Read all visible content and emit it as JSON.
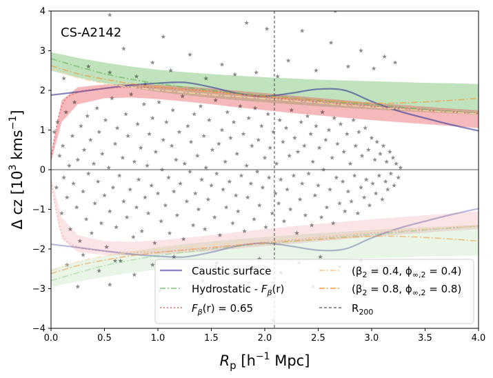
{
  "chart_data": {
    "type": "scatter",
    "title": "",
    "annotation": "CS-A2142",
    "xlabel": {
      "main": "R",
      "sub": "p",
      "rest": " [h",
      "sup1": "−1",
      "rest2": " Mpc]"
    },
    "ylabel": {
      "main": "Δ cz [10",
      "sup1": "3",
      "rest": " kms",
      "sup2": "−1",
      "end": "]"
    },
    "xlim": [
      0.0,
      4.0
    ],
    "ylim": [
      -4,
      4
    ],
    "xticks": [
      0.0,
      0.5,
      1.0,
      1.5,
      2.0,
      2.5,
      3.0,
      3.5,
      4.0
    ],
    "xtick_labels": [
      "0.0",
      "0.5",
      "1.0",
      "1.5",
      "2.0",
      "2.5",
      "3.0",
      "3.5",
      "4.0"
    ],
    "yticks": [
      -4,
      -3,
      -2,
      -1,
      0,
      1,
      2,
      3,
      4
    ],
    "ytick_labels": [
      "−4",
      "−3",
      "−2",
      "−1",
      "0",
      "1",
      "2",
      "3",
      "4"
    ],
    "r200": 2.09,
    "legend": {
      "placement": "lower-right",
      "entries": [
        {
          "label": "Caustic surface",
          "style": "solid",
          "color": "#3b3b96"
        },
        {
          "label": "Hydrostatic - ",
          "label_math": "F",
          "label_sub": "β",
          "label_end": "(r)",
          "style": "dashdot",
          "color": "#5ab552"
        },
        {
          "label_math": "F",
          "label_sub": "β",
          "label_end": "(r) = 0.65",
          "style": "dotted",
          "color": "#e8595c"
        },
        {
          "label": "(β",
          "label_sub": "2",
          "label_end": " = 0.4, ϕ",
          "label_sub2": "∞,2",
          "label_end2": " = 0.4)",
          "style": "dashdot",
          "color": "#f6d7a8"
        },
        {
          "label": "(β",
          "label_sub": "2",
          "label_end": " = 0.8, ϕ",
          "label_sub2": "∞,2",
          "label_end2": " = 0.8)",
          "style": "dashdot",
          "color": "#f39a3a"
        },
        {
          "label": "R",
          "label_sub": "200",
          "style": "dashed",
          "color": "#555555"
        }
      ]
    },
    "colors": {
      "caustic": "#3b3b96",
      "hydro": "#5ab552",
      "hydro_band": "#5ab552",
      "fbeta": "#e8595c",
      "fbeta_band": "#e8595c",
      "beta04": "#f6d7a8",
      "beta08": "#f39a3a",
      "points": "#000000",
      "r200": "#555555"
    },
    "series": [
      {
        "name": "Caustic surface",
        "x": [
          0.0,
          0.25,
          0.5,
          0.75,
          1.0,
          1.25,
          1.5,
          1.75,
          2.0,
          2.25,
          2.5,
          2.75,
          3.0,
          3.25,
          3.5,
          3.75,
          4.0
        ],
        "y": [
          1.88,
          1.96,
          2.05,
          2.13,
          2.18,
          2.2,
          2.08,
          1.92,
          1.85,
          1.93,
          2.03,
          2.0,
          1.72,
          1.48,
          1.3,
          1.13,
          0.98
        ]
      },
      {
        "name": "Hydrostatic - F_beta(r)",
        "x": [
          0.0,
          0.25,
          0.5,
          0.75,
          1.0,
          1.25,
          1.5,
          1.75,
          2.0,
          2.25,
          2.5,
          2.75,
          3.0,
          3.25,
          3.5,
          3.75,
          4.0
        ],
        "y": [
          2.8,
          2.6,
          2.42,
          2.28,
          2.17,
          2.08,
          2.0,
          1.93,
          1.87,
          1.81,
          1.75,
          1.69,
          1.64,
          1.58,
          1.52,
          1.47,
          1.42
        ],
        "band_upper": [
          2.96,
          2.82,
          2.7,
          2.6,
          2.52,
          2.46,
          2.41,
          2.37,
          2.33,
          2.3,
          2.27,
          2.25,
          2.23,
          2.21,
          2.19,
          2.18,
          2.16
        ],
        "band_lower": [
          2.5,
          2.32,
          2.18,
          2.06,
          1.96,
          1.88,
          1.81,
          1.75,
          1.7,
          1.65,
          1.6,
          1.56,
          1.52,
          1.48,
          1.45,
          1.42,
          1.39
        ]
      },
      {
        "name": "F_beta(r) = 0.65",
        "x": [
          0.0,
          0.1,
          0.25,
          0.5,
          0.75,
          1.0,
          1.25,
          1.5,
          1.75,
          2.0,
          2.25,
          2.5,
          2.75,
          3.0,
          3.25,
          3.5,
          3.75,
          4.0
        ],
        "y": [
          0.3,
          1.6,
          1.95,
          2.05,
          2.08,
          2.07,
          2.03,
          1.97,
          1.9,
          1.83,
          1.77,
          1.71,
          1.65,
          1.6,
          1.55,
          1.5,
          1.46,
          1.42
        ],
        "band_upper": [
          0.4,
          1.75,
          2.08,
          2.15,
          2.16,
          2.14,
          2.1,
          2.05,
          1.99,
          1.93,
          1.87,
          1.81,
          1.75,
          1.69,
          1.64,
          1.59,
          1.54,
          1.5
        ],
        "band_lower": [
          0.2,
          1.2,
          1.65,
          1.8,
          1.82,
          1.78,
          1.72,
          1.65,
          1.57,
          1.5,
          1.43,
          1.37,
          1.31,
          1.25,
          1.2,
          1.15,
          1.1,
          1.05
        ]
      },
      {
        "name": "(beta2 = 0.4, phi = 0.4)",
        "x": [
          0.0,
          0.25,
          0.5,
          0.75,
          1.0,
          1.25,
          1.5,
          1.75,
          2.0,
          2.25,
          2.5,
          2.75,
          3.0,
          3.25,
          3.5,
          3.75,
          4.0
        ],
        "y": [
          2.55,
          2.32,
          2.18,
          2.08,
          2.01,
          1.95,
          1.89,
          1.84,
          1.79,
          1.74,
          1.69,
          1.63,
          1.58,
          1.53,
          1.49,
          1.45,
          1.41
        ]
      },
      {
        "name": "(beta2 = 0.8, phi = 0.8)",
        "x": [
          0.0,
          0.25,
          0.5,
          0.75,
          1.0,
          1.25,
          1.5,
          1.75,
          2.0,
          2.25,
          2.5,
          2.75,
          3.0,
          3.25,
          3.5,
          3.75,
          4.0
        ],
        "y": [
          2.62,
          2.42,
          2.28,
          2.17,
          2.09,
          2.02,
          1.96,
          1.9,
          1.85,
          1.8,
          1.76,
          1.71,
          1.68,
          1.68,
          1.71,
          1.75,
          1.8
        ]
      }
    ],
    "scatter_points": [
      [
        0.03,
        0.95
      ],
      [
        0.05,
        -0.45
      ],
      [
        0.06,
        1.2
      ],
      [
        0.08,
        0.35
      ],
      [
        0.1,
        -1.1
      ],
      [
        0.11,
        0.6
      ],
      [
        0.12,
        -0.2
      ],
      [
        0.14,
        1.45
      ],
      [
        0.15,
        -0.7
      ],
      [
        0.17,
        0.1
      ],
      [
        0.18,
        -1.5
      ],
      [
        0.2,
        0.85
      ],
      [
        0.21,
        -0.35
      ],
      [
        0.22,
        1.7
      ],
      [
        0.24,
        -0.95
      ],
      [
        0.25,
        0.25
      ],
      [
        0.27,
        -1.8
      ],
      [
        0.28,
        1.1
      ],
      [
        0.3,
        -0.55
      ],
      [
        0.31,
        0.5
      ],
      [
        0.33,
        -1.25
      ],
      [
        0.34,
        1.35
      ],
      [
        0.35,
        -0.1
      ],
      [
        0.37,
        0.75
      ],
      [
        0.38,
        -1.6
      ],
      [
        0.4,
        0.15
      ],
      [
        0.41,
        -0.85
      ],
      [
        0.43,
        1.55
      ],
      [
        0.44,
        -0.3
      ],
      [
        0.45,
        0.95
      ],
      [
        0.47,
        -1.35
      ],
      [
        0.48,
        0.4
      ],
      [
        0.5,
        -0.65
      ],
      [
        0.51,
        1.25
      ],
      [
        0.52,
        -1.95
      ],
      [
        0.54,
        0.05
      ],
      [
        0.55,
        -1.05
      ],
      [
        0.57,
        1.8
      ],
      [
        0.58,
        -0.45
      ],
      [
        0.6,
        0.65
      ],
      [
        0.61,
        -1.45
      ],
      [
        0.62,
        1.05
      ],
      [
        0.64,
        -0.15
      ],
      [
        0.65,
        -2.3
      ],
      [
        0.67,
        0.3
      ],
      [
        0.68,
        -0.8
      ],
      [
        0.7,
        1.4
      ],
      [
        0.71,
        -1.2
      ],
      [
        0.72,
        0.85
      ],
      [
        0.74,
        -0.5
      ],
      [
        0.75,
        1.9
      ],
      [
        0.77,
        -1.7
      ],
      [
        0.78,
        0.2
      ],
      [
        0.8,
        -0.95
      ],
      [
        0.81,
        1.15
      ],
      [
        0.82,
        -0.25
      ],
      [
        0.84,
        0.55
      ],
      [
        0.85,
        -1.55
      ],
      [
        0.87,
        1.65
      ],
      [
        0.88,
        -0.7
      ],
      [
        0.9,
        0.1
      ],
      [
        0.91,
        -1.1
      ],
      [
        0.92,
        0.9
      ],
      [
        0.94,
        -0.4
      ],
      [
        0.95,
        1.3
      ],
      [
        0.97,
        -1.85
      ],
      [
        0.98,
        0.45
      ],
      [
        1.0,
        -0.6
      ],
      [
        1.01,
        1.7
      ],
      [
        1.03,
        -1.3
      ],
      [
        1.04,
        0.0
      ],
      [
        1.05,
        0.75
      ],
      [
        1.07,
        -0.9
      ],
      [
        1.08,
        1.2
      ],
      [
        1.1,
        -0.2
      ],
      [
        1.11,
        -1.6
      ],
      [
        1.13,
        0.6
      ],
      [
        1.14,
        1.5
      ],
      [
        1.15,
        -0.55
      ],
      [
        1.17,
        0.25
      ],
      [
        1.18,
        -1.15
      ],
      [
        1.2,
        0.95
      ],
      [
        1.21,
        -0.35
      ],
      [
        1.23,
        1.85
      ],
      [
        1.24,
        -1.75
      ],
      [
        1.25,
        0.15
      ],
      [
        1.27,
        -0.8
      ],
      [
        1.28,
        1.1
      ],
      [
        1.3,
        -0.05
      ],
      [
        1.31,
        0.7
      ],
      [
        1.33,
        -1.4
      ],
      [
        1.34,
        1.4
      ],
      [
        1.35,
        -0.6
      ],
      [
        1.37,
        0.35
      ],
      [
        1.38,
        -1.0
      ],
      [
        1.4,
        1.6
      ],
      [
        1.41,
        -0.25
      ],
      [
        1.43,
        0.85
      ],
      [
        1.44,
        -1.5
      ],
      [
        1.45,
        0.05
      ],
      [
        1.47,
        -0.75
      ],
      [
        1.48,
        1.25
      ],
      [
        1.5,
        -0.4
      ],
      [
        1.51,
        0.5
      ],
      [
        1.53,
        -1.2
      ],
      [
        1.54,
        1.75
      ],
      [
        1.55,
        -0.1
      ],
      [
        1.57,
        0.65
      ],
      [
        1.58,
        -1.65
      ],
      [
        1.6,
        1.0
      ],
      [
        1.61,
        -0.5
      ],
      [
        1.63,
        0.2
      ],
      [
        1.64,
        -0.95
      ],
      [
        1.65,
        1.45
      ],
      [
        1.67,
        -0.3
      ],
      [
        1.68,
        0.8
      ],
      [
        1.7,
        -1.35
      ],
      [
        1.71,
        1.2
      ],
      [
        1.73,
        -0.65
      ],
      [
        1.74,
        0.4
      ],
      [
        1.75,
        -1.05
      ],
      [
        1.77,
        1.6
      ],
      [
        1.78,
        -0.15
      ],
      [
        1.8,
        0.9
      ],
      [
        1.81,
        -1.55
      ],
      [
        1.83,
        0.1
      ],
      [
        1.84,
        -0.7
      ],
      [
        1.85,
        1.3
      ],
      [
        1.87,
        -0.35
      ],
      [
        1.88,
        0.6
      ],
      [
        1.9,
        -1.25
      ],
      [
        1.91,
        1.55
      ],
      [
        1.93,
        -0.05
      ],
      [
        1.94,
        0.75
      ],
      [
        1.95,
        -0.9
      ],
      [
        1.97,
        1.1
      ],
      [
        1.98,
        -0.45
      ],
      [
        2.0,
        0.3
      ],
      [
        2.01,
        -1.45
      ],
      [
        2.03,
        1.4
      ],
      [
        2.04,
        -0.2
      ],
      [
        2.05,
        0.55
      ],
      [
        2.07,
        -1.1
      ],
      [
        2.08,
        0.95
      ],
      [
        2.1,
        -0.6
      ],
      [
        2.11,
        0.15
      ],
      [
        2.13,
        -0.85
      ],
      [
        2.14,
        1.25
      ],
      [
        2.15,
        -0.25
      ],
      [
        2.17,
        0.7
      ],
      [
        2.18,
        -1.3
      ],
      [
        2.2,
        1.05
      ],
      [
        2.21,
        -0.5
      ],
      [
        2.23,
        0.35
      ],
      [
        2.24,
        -1.0
      ],
      [
        2.25,
        1.5
      ],
      [
        2.27,
        -0.15
      ],
      [
        2.28,
        0.8
      ],
      [
        2.3,
        -1.6
      ],
      [
        2.31,
        0.45
      ],
      [
        2.33,
        -0.75
      ],
      [
        2.34,
        1.2
      ],
      [
        2.35,
        -0.35
      ],
      [
        2.37,
        0.6
      ],
      [
        2.38,
        -1.15
      ],
      [
        2.4,
        1.35
      ],
      [
        2.41,
        -0.1
      ],
      [
        2.43,
        0.9
      ],
      [
        2.44,
        -1.4
      ],
      [
        2.45,
        0.2
      ],
      [
        2.47,
        -0.65
      ],
      [
        2.48,
        1.1
      ],
      [
        2.5,
        -0.4
      ],
      [
        2.51,
        0.55
      ],
      [
        2.53,
        -1.2
      ],
      [
        2.54,
        1.45
      ],
      [
        2.55,
        0.0
      ],
      [
        2.57,
        0.75
      ],
      [
        2.58,
        -0.95
      ],
      [
        2.6,
        1.0
      ],
      [
        2.61,
        -0.5
      ],
      [
        2.63,
        0.3
      ],
      [
        2.64,
        -1.35
      ],
      [
        2.65,
        1.3
      ],
      [
        2.67,
        -0.2
      ],
      [
        2.68,
        0.65
      ],
      [
        2.7,
        -0.85
      ],
      [
        2.71,
        1.15
      ],
      [
        2.73,
        -0.3
      ],
      [
        2.74,
        0.45
      ],
      [
        2.75,
        -1.05
      ],
      [
        2.77,
        0.9
      ],
      [
        2.78,
        -0.55
      ],
      [
        2.8,
        0.15
      ],
      [
        2.81,
        -0.8
      ],
      [
        2.83,
        1.25
      ],
      [
        2.84,
        -0.15
      ],
      [
        2.85,
        0.6
      ],
      [
        2.87,
        -1.1
      ],
      [
        2.88,
        0.95
      ],
      [
        2.9,
        -0.45
      ],
      [
        2.91,
        0.35
      ],
      [
        2.93,
        -0.7
      ],
      [
        2.94,
        1.05
      ],
      [
        2.95,
        -0.25
      ],
      [
        2.97,
        0.5
      ],
      [
        2.98,
        -0.9
      ],
      [
        3.0,
        0.8
      ],
      [
        3.01,
        -0.35
      ],
      [
        3.03,
        0.25
      ],
      [
        3.04,
        -0.6
      ],
      [
        3.05,
        0.7
      ],
      [
        3.07,
        -0.15
      ],
      [
        3.08,
        0.4
      ],
      [
        3.1,
        -0.75
      ],
      [
        3.11,
        0.6
      ],
      [
        3.13,
        -0.3
      ],
      [
        3.14,
        0.2
      ],
      [
        3.15,
        -0.5
      ],
      [
        3.17,
        0.45
      ],
      [
        3.18,
        -0.1
      ],
      [
        3.2,
        0.3
      ],
      [
        3.21,
        -0.4
      ],
      [
        3.23,
        0.15
      ],
      [
        3.25,
        -0.2
      ],
      [
        3.27,
        0.05
      ],
      [
        0.12,
        2.3
      ],
      [
        0.35,
        2.6
      ],
      [
        0.55,
        2.45
      ],
      [
        0.68,
        3.05
      ],
      [
        0.8,
        2.35
      ],
      [
        0.95,
        2.7
      ],
      [
        1.12,
        2.5
      ],
      [
        1.3,
        2.9
      ],
      [
        1.45,
        2.3
      ],
      [
        1.6,
        2.65
      ],
      [
        1.72,
        2.4
      ],
      [
        1.83,
        3.7
      ],
      [
        1.92,
        2.45
      ],
      [
        2.02,
        3.55
      ],
      [
        2.12,
        2.35
      ],
      [
        2.22,
        2.75
      ],
      [
        2.35,
        3.5
      ],
      [
        2.48,
        2.5
      ],
      [
        2.62,
        3.2
      ],
      [
        2.78,
        2.6
      ],
      [
        2.9,
        3.0
      ],
      [
        3.02,
        2.55
      ],
      [
        3.12,
        2.85
      ],
      [
        3.22,
        2.7
      ],
      [
        2.66,
        4.0
      ],
      [
        0.55,
        3.9
      ],
      [
        1.05,
        3.35
      ],
      [
        0.88,
        2.15
      ],
      [
        0.15,
        -2.4
      ],
      [
        0.3,
        -2.15
      ],
      [
        0.45,
        -2.55
      ],
      [
        0.6,
        -2.3
      ],
      [
        0.78,
        -2.65
      ],
      [
        0.95,
        -2.4
      ],
      [
        1.15,
        -2.2
      ],
      [
        1.35,
        -2.55
      ],
      [
        1.55,
        -2.35
      ],
      [
        1.75,
        -2.5
      ],
      [
        1.95,
        -2.25
      ],
      [
        2.15,
        -2.6
      ],
      [
        2.32,
        -2.35
      ],
      [
        2.52,
        -2.2
      ],
      [
        2.7,
        -2.45
      ],
      [
        2.9,
        -2.3
      ],
      [
        3.05,
        -2.5
      ],
      [
        0.55,
        -2.9
      ],
      [
        1.02,
        -3.05
      ],
      [
        1.42,
        -2.8
      ],
      [
        2.08,
        -3.8
      ],
      [
        2.45,
        -2.95
      ],
      [
        0.25,
        -2.95
      ],
      [
        1.85,
        -2.85
      ]
    ]
  }
}
